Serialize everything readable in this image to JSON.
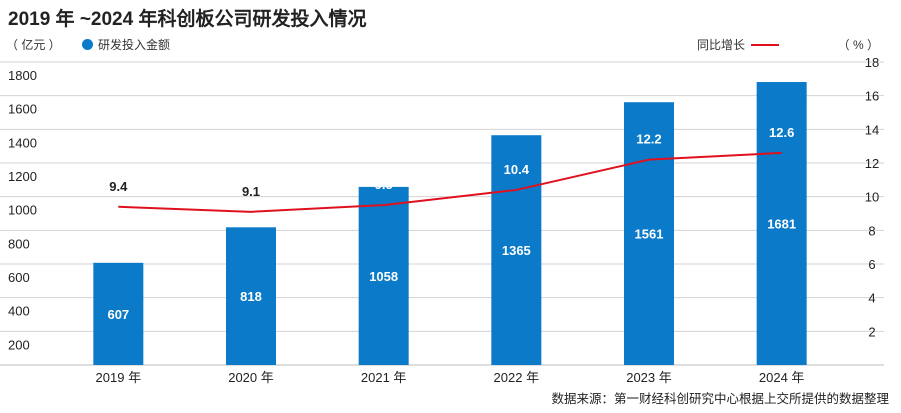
{
  "title": "2019 年 ~2024 年科创板公司研发投入情况",
  "left_unit": "（ 亿元 ）",
  "right_unit": "（ % ）",
  "source": "数据来源：第一财经科创研究中心根据上交所提供的数据整理",
  "colors": {
    "bar": "#0a7ac9",
    "line": "#e0111f",
    "grid": "#d3d3d3"
  },
  "chart_data": {
    "type": "bar",
    "categories": [
      "2019 年",
      "2020 年",
      "2021 年",
      "2022 年",
      "2023 年",
      "2024 年"
    ],
    "series": [
      {
        "name": "研发投入金额",
        "type": "bar",
        "axis": "left",
        "values": [
          607,
          818,
          1058,
          1365,
          1561,
          1681
        ]
      },
      {
        "name": "同比增长",
        "type": "line",
        "axis": "right",
        "values": [
          9.4,
          9.1,
          9.5,
          10.4,
          12.2,
          12.6
        ]
      }
    ],
    "y_left": {
      "ticks": [
        200,
        400,
        600,
        800,
        1000,
        1200,
        1400,
        1600,
        1800
      ],
      "range": [
        0,
        1800
      ]
    },
    "y_right": {
      "ticks": [
        2,
        4,
        6,
        8,
        10,
        12,
        14,
        16,
        18
      ],
      "range": [
        0,
        18
      ]
    },
    "grid": true,
    "legend_position": "top"
  }
}
